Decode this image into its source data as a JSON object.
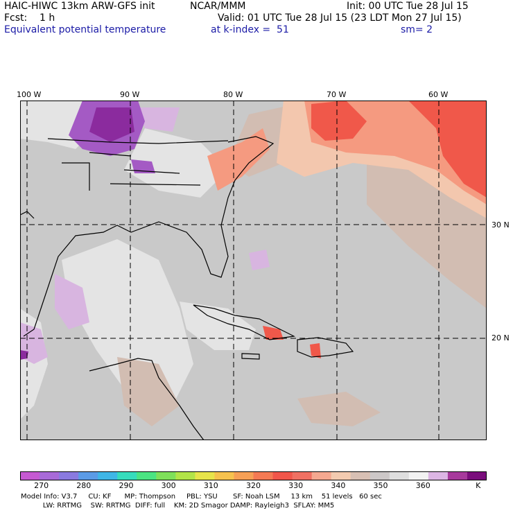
{
  "header": {
    "title_left": "HAIC-HIWC 13km ARW-GFS init",
    "org": "NCAR/MMM",
    "init": "Init: 00 UTC Tue 28 Jul 15",
    "fcst": "Fcst:    1 h",
    "valid": "Valid: 01 UTC Tue 28 Jul 15 (23 LDT Mon 27 Jul 15)",
    "field": "Equivalent potential temperature",
    "level": "at k-index =  51",
    "smooth": "sm= 2"
  },
  "map": {
    "lon_labels": [
      "100 W",
      "90 W",
      "80 W",
      "70 W",
      "60 W"
    ],
    "lat_labels": [
      "30 N",
      "20 N"
    ],
    "colors": {
      "background": "#c9c9c9",
      "light": "#e4e4e4",
      "tan": "#d2bdb2",
      "peach": "#f3c7ae",
      "salmon": "#f59a80",
      "red": "#f0584a",
      "lavender": "#d8b5e0",
      "purple": "#a45ac4",
      "dark_purple": "#8b2b9e",
      "coast": "#000000"
    }
  },
  "colorbar": {
    "colors": [
      "#c65ad2",
      "#a86ad8",
      "#8a7ae0",
      "#5b9be6",
      "#3fb6e6",
      "#36dcbc",
      "#4be482",
      "#7fe05a",
      "#b2e448",
      "#e7e44a",
      "#f6c24e",
      "#f6a056",
      "#f47a54",
      "#f1564a",
      "#f07062",
      "#f5a890",
      "#f3cbb0",
      "#d8c0b4",
      "#cdc8c8",
      "#dedede",
      "#f2f2f2",
      "#dcb6e4",
      "#a73a9c",
      "#7a0e7c"
    ],
    "labels": [
      "270",
      "280",
      "290",
      "300",
      "310",
      "320",
      "330",
      "340",
      "350",
      "360",
      "K"
    ],
    "label_values": [
      270,
      280,
      290,
      300,
      310,
      320,
      330,
      340,
      350,
      360,
      373
    ]
  },
  "footer": {
    "line1": "Model Info: V3.7     CU: KF      MP: Thompson     PBL: YSU       SF: Noah LSM     13 km    51 levels   60 sec",
    "line2": "          LW: RRTMG    SW: RRTMG  DIFF: full    KM: 2D Smagor DAMP: Rayleigh3  SFLAY: MM5"
  }
}
